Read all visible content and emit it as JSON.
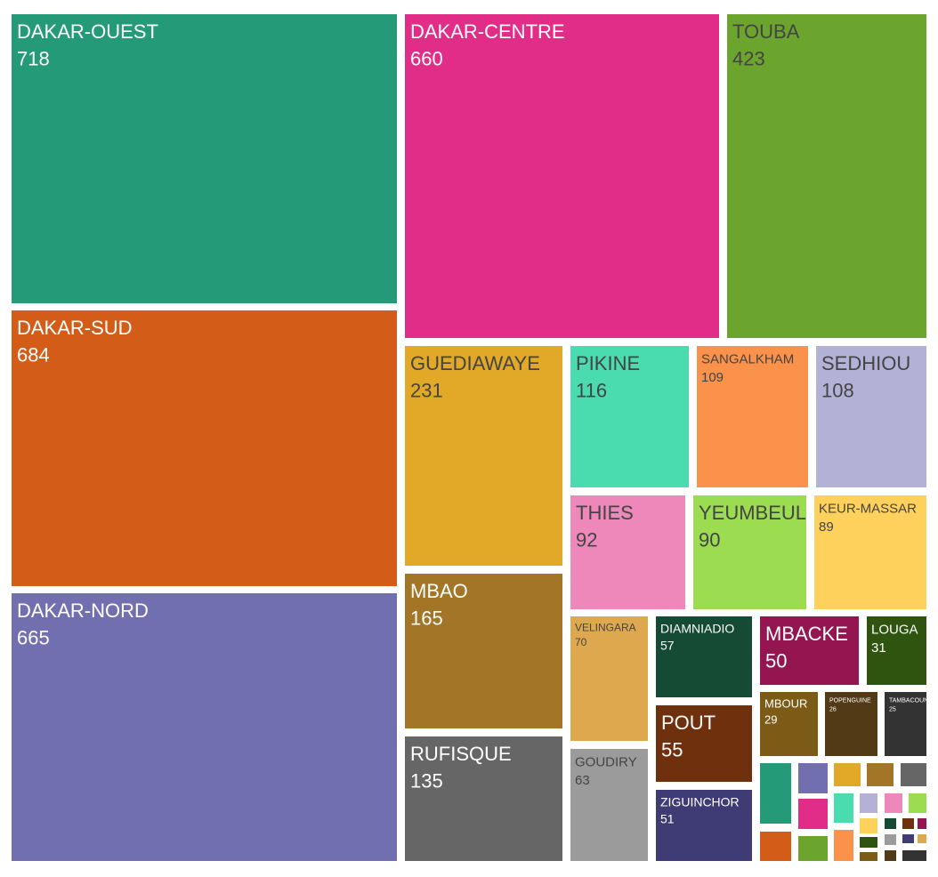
{
  "chart_data": {
    "type": "treemap",
    "title": "",
    "items": [
      {
        "label": "DAKAR-OUEST",
        "value": 718,
        "color": "#259a78",
        "text_color": "#ffffff"
      },
      {
        "label": "DAKAR-CENTRE",
        "value": 660,
        "color": "#e22d88",
        "text_color": "#ffffff"
      },
      {
        "label": "TOUBA",
        "value": 423,
        "color": "#6ba52d",
        "text_color": "#444444"
      },
      {
        "label": "DAKAR-SUD",
        "value": 684,
        "color": "#d45c19",
        "text_color": "#ffffff"
      },
      {
        "label": "DAKAR-NORD",
        "value": 665,
        "color": "#726fb0",
        "text_color": "#ffffff"
      },
      {
        "label": "GUEDIAWAYE",
        "value": 231,
        "color": "#e2a828",
        "text_color": "#444444"
      },
      {
        "label": "MBAO",
        "value": 165,
        "color": "#a37527",
        "text_color": "#ffffff"
      },
      {
        "label": "RUFISQUE",
        "value": 135,
        "color": "#666666",
        "text_color": "#ffffff"
      },
      {
        "label": "PIKINE",
        "value": 116,
        "color": "#4adcae",
        "text_color": "#444444"
      },
      {
        "label": "SANGALKHAM",
        "value": 109,
        "color": "#fa924b",
        "text_color": "#444444"
      },
      {
        "label": "SEDHIOU",
        "value": 108,
        "color": "#b3b2d6",
        "text_color": "#444444"
      },
      {
        "label": "THIES",
        "value": 92,
        "color": "#ee88ba",
        "text_color": "#444444"
      },
      {
        "label": "YEUMBEUL",
        "value": 90,
        "color": "#9bdc51",
        "text_color": "#444444"
      },
      {
        "label": "KEUR-MASSAR",
        "value": 89,
        "color": "#fdd15b",
        "text_color": "#444444"
      },
      {
        "label": "VELINGARA",
        "value": 70,
        "color": "#dea94e",
        "text_color": "#444444"
      },
      {
        "label": "GOUDIRY",
        "value": 63,
        "color": "#9b9b9b",
        "text_color": "#444444"
      },
      {
        "label": "DIAMNIADIO",
        "value": 57,
        "color": "#154a34",
        "text_color": "#ffffff"
      },
      {
        "label": "POUT",
        "value": 55,
        "color": "#6f300e",
        "text_color": "#ffffff"
      },
      {
        "label": "ZIGUINCHOR",
        "value": 51,
        "color": "#3f3c75",
        "text_color": "#ffffff"
      },
      {
        "label": "MBACKE",
        "value": 50,
        "color": "#94154f",
        "text_color": "#ffffff"
      },
      {
        "label": "LOUGA",
        "value": 31,
        "color": "#2f5410",
        "text_color": "#ffffff"
      },
      {
        "label": "MBOUR",
        "value": 29,
        "color": "#7c5b16",
        "text_color": "#ffffff"
      },
      {
        "label": "POPENGUINE",
        "value": 26,
        "color": "#523a16",
        "text_color": "#ffffff"
      },
      {
        "label": "TAMBACOUNDA",
        "value": 25,
        "color": "#333333",
        "text_color": "#ffffff"
      }
    ],
    "small_tiles": [
      "#259a78",
      "#726fb0",
      "#e2a828",
      "#a37527",
      "#666666",
      "#e22d88",
      "#4adcae",
      "#b3b2d6",
      "#ee88ba",
      "#9bdc51",
      "#d45c19",
      "#6ba52d",
      "#fa924b",
      "#fdd15b",
      "#154a34",
      "#6f300e",
      "#94154f",
      "#2f5410",
      "#9b9b9b",
      "#3f3c75",
      "#dea94e",
      "#7c5b16",
      "#523a16",
      "#333333"
    ]
  }
}
